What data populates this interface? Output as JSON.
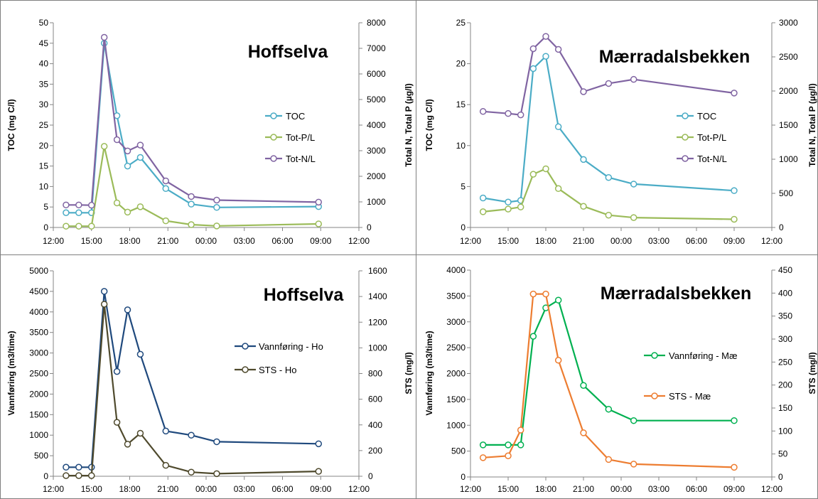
{
  "figure": {
    "border_color": "#7f7f7f",
    "axis_color": "#868686",
    "grid": false
  },
  "chart_data": [
    {
      "type": "line",
      "title": "Hoffselva",
      "ylabel": "TOC (mg C/l)",
      "y2label": "Total N, Total P (µg/l)",
      "xlim": [
        "12:00",
        "12:00"
      ],
      "x_ticks": [
        "12:00",
        "15:00",
        "18:00",
        "21:00",
        "00:00",
        "03:00",
        "06:00",
        "09:00",
        "12:00"
      ],
      "ylim": [
        0,
        50
      ],
      "y_ticks": [
        "0",
        "5",
        "10",
        "15",
        "20",
        "25",
        "30",
        "35",
        "40",
        "45",
        "50"
      ],
      "y2lim": [
        0,
        8000
      ],
      "y2_ticks": [
        "0",
        "1000",
        "2000",
        "3000",
        "4000",
        "5000",
        "6000",
        "7000",
        "8000"
      ],
      "legend_position": "right",
      "series": [
        {
          "name": "TOC",
          "axis": "left",
          "color": "#4bacc6",
          "x": [
            "13:00",
            "14:00",
            "15:00",
            "16:00",
            "17:00",
            "17:50",
            "18:50",
            "20:50",
            "22:50",
            "00:50",
            "08:50"
          ],
          "values": [
            3.6,
            3.6,
            3.6,
            45,
            27.3,
            15,
            17.1,
            9.5,
            5.7,
            4.9,
            5.1
          ]
        },
        {
          "name": "Tot-P/L",
          "axis": "right",
          "color": "#9bbb59",
          "x": [
            "13:00",
            "14:00",
            "15:00",
            "16:00",
            "17:00",
            "17:50",
            "18:50",
            "20:50",
            "22:50",
            "00:50",
            "08:50"
          ],
          "values": [
            50,
            50,
            50,
            3170,
            960,
            600,
            810,
            260,
            110,
            60,
            140
          ]
        },
        {
          "name": "Tot-N/L",
          "axis": "right",
          "color": "#8064a2",
          "x": [
            "13:00",
            "14:00",
            "15:00",
            "16:00",
            "17:00",
            "17:50",
            "18:50",
            "20:50",
            "22:50",
            "00:50",
            "08:50"
          ],
          "values": [
            880,
            880,
            870,
            7430,
            3430,
            2990,
            3220,
            1820,
            1210,
            1070,
            990
          ]
        }
      ]
    },
    {
      "type": "line",
      "title": "Mærradalsbekken",
      "ylabel": "TOC (mg C/l)",
      "y2label": "Total N, Total P (µg/l)",
      "xlim": [
        "12:00",
        "12:00"
      ],
      "x_ticks": [
        "12:00",
        "15:00",
        "18:00",
        "21:00",
        "00:00",
        "03:00",
        "06:00",
        "09:00",
        "12:00"
      ],
      "ylim": [
        0,
        25
      ],
      "y_ticks": [
        "0",
        "5",
        "10",
        "15",
        "20",
        "25"
      ],
      "y2lim": [
        0,
        3000
      ],
      "y2_ticks": [
        "0",
        "500",
        "1000",
        "1500",
        "2000",
        "2500",
        "3000"
      ],
      "legend_position": "right",
      "series": [
        {
          "name": "TOC",
          "axis": "left",
          "color": "#4bacc6",
          "x": [
            "13:00",
            "15:00",
            "16:00",
            "17:00",
            "18:00",
            "19:00",
            "21:00",
            "23:00",
            "01:00",
            "09:00"
          ],
          "values": [
            3.6,
            3.1,
            3.3,
            19.4,
            20.9,
            12.3,
            8.3,
            6.1,
            5.3,
            4.5
          ]
        },
        {
          "name": "Tot-P/L",
          "axis": "right",
          "color": "#9bbb59",
          "x": [
            "13:00",
            "15:00",
            "16:00",
            "17:00",
            "18:00",
            "19:00",
            "21:00",
            "23:00",
            "01:00",
            "09:00"
          ],
          "values": [
            230,
            270,
            300,
            780,
            860,
            570,
            310,
            180,
            145,
            120
          ]
        },
        {
          "name": "Tot-N/L",
          "axis": "right",
          "color": "#8064a2",
          "x": [
            "13:00",
            "15:00",
            "16:00",
            "17:00",
            "18:00",
            "19:00",
            "21:00",
            "23:00",
            "01:00",
            "09:00"
          ],
          "values": [
            1700,
            1670,
            1650,
            2620,
            2800,
            2610,
            1990,
            2110,
            2170,
            1970
          ]
        }
      ]
    },
    {
      "type": "line",
      "title": "Hoffselva",
      "ylabel": "Vannføring (m3/time)",
      "y2label": "STS (mg/l)",
      "xlim": [
        "12:00",
        "12:00"
      ],
      "x_ticks": [
        "12:00",
        "15:00",
        "18:00",
        "21:00",
        "00:00",
        "03:00",
        "06:00",
        "09:00",
        "12:00"
      ],
      "ylim": [
        0,
        5000
      ],
      "y_ticks": [
        "0",
        "500",
        "1000",
        "1500",
        "2000",
        "2500",
        "3000",
        "3500",
        "4000",
        "4500",
        "5000"
      ],
      "y2lim": [
        0,
        1600
      ],
      "y2_ticks": [
        "0",
        "200",
        "400",
        "600",
        "800",
        "1000",
        "1200",
        "1400",
        "1600"
      ],
      "legend_position": "right",
      "series": [
        {
          "name": "Vannføring - Ho",
          "axis": "left",
          "color": "#1f497d",
          "x": [
            "13:00",
            "14:00",
            "15:00",
            "16:00",
            "17:00",
            "17:50",
            "18:50",
            "20:50",
            "22:50",
            "00:50",
            "08:50"
          ],
          "values": [
            220,
            220,
            220,
            4500,
            2550,
            4050,
            2970,
            1100,
            1000,
            840,
            790
          ]
        },
        {
          "name": "STS - Ho",
          "axis": "right",
          "color": "#4f4a2d",
          "x": [
            "13:00",
            "14:00",
            "15:00",
            "16:00",
            "17:00",
            "17:50",
            "18:50",
            "20:50",
            "22:50",
            "00:50",
            "08:50"
          ],
          "values": [
            5,
            5,
            5,
            1340,
            420,
            250,
            335,
            85,
            32,
            20,
            38
          ]
        }
      ]
    },
    {
      "type": "line",
      "title": "Mærradalsbekken",
      "ylabel": "Vannføring (m3/time)",
      "y2label": "STS (mg/l)",
      "xlim": [
        "12:00",
        "12:00"
      ],
      "x_ticks": [
        "12:00",
        "15:00",
        "18:00",
        "21:00",
        "00:00",
        "03:00",
        "06:00",
        "09:00",
        "12:00"
      ],
      "ylim": [
        0,
        4000
      ],
      "y_ticks": [
        "0",
        "500",
        "1000",
        "1500",
        "2000",
        "2500",
        "3000",
        "3500",
        "4000"
      ],
      "y2lim": [
        0,
        450
      ],
      "y2_ticks": [
        "0",
        "50",
        "100",
        "150",
        "200",
        "250",
        "300",
        "350",
        "400",
        "450"
      ],
      "legend_position": "right",
      "series": [
        {
          "name": "Vannføring - Mæ",
          "axis": "left",
          "color": "#00b050",
          "x": [
            "13:00",
            "15:00",
            "16:00",
            "17:00",
            "18:00",
            "19:00",
            "21:00",
            "23:00",
            "01:00",
            "09:00"
          ],
          "values": [
            620,
            620,
            620,
            2720,
            3270,
            3420,
            1770,
            1310,
            1090,
            1090
          ]
        },
        {
          "name": "STS - Mæ",
          "axis": "right",
          "color": "#ed7d31",
          "x": [
            "13:00",
            "15:00",
            "16:00",
            "17:00",
            "18:00",
            "19:00",
            "21:00",
            "23:00",
            "01:00",
            "09:00"
          ],
          "values": [
            42,
            46,
            102,
            398,
            398,
            254,
            96,
            38,
            28,
            21
          ]
        }
      ]
    }
  ]
}
